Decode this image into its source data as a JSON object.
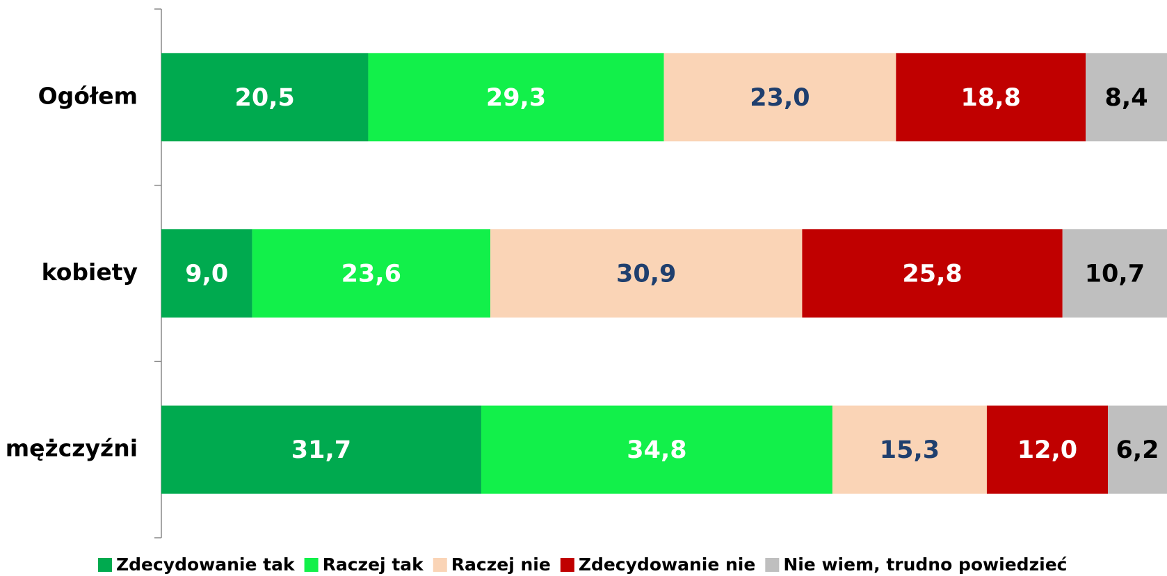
{
  "chart_data": {
    "type": "stacked-bar-horizontal",
    "categories": [
      "Ogółem",
      "kobiety",
      "mężczyźni"
    ],
    "xlim": [
      0,
      100
    ],
    "series": [
      {
        "name": "Zdecydowanie tak",
        "color": "#00aa4f",
        "label_color": "#ffffff",
        "values": [
          20.5,
          9.0,
          31.7
        ],
        "value_labels": [
          "20,5",
          "9,0",
          "31,7"
        ]
      },
      {
        "name": "Raczej tak",
        "color": "#12f04a",
        "label_color": "#ffffff",
        "values": [
          29.3,
          23.6,
          34.8
        ],
        "value_labels": [
          "29,3",
          "23,6",
          "34,8"
        ]
      },
      {
        "name": "Raczej nie",
        "color": "#fad4b6",
        "label_color": "#1f3f6e",
        "values": [
          23.0,
          30.9,
          15.3
        ],
        "value_labels": [
          "23,0",
          "30,9",
          "15,3"
        ]
      },
      {
        "name": "Zdecydowanie nie",
        "color": "#c00000",
        "label_color": "#ffffff",
        "values": [
          18.8,
          25.8,
          12.0
        ],
        "value_labels": [
          "18,8",
          "25,8",
          "12,0"
        ]
      },
      {
        "name": "Nie wiem, trudno powiedzieć",
        "color": "#bfbfbf",
        "label_color": "#000000",
        "values": [
          8.4,
          10.7,
          6.2
        ],
        "value_labels": [
          "8,4",
          "10,7",
          "6,2"
        ]
      }
    ],
    "legend": "bottom"
  }
}
